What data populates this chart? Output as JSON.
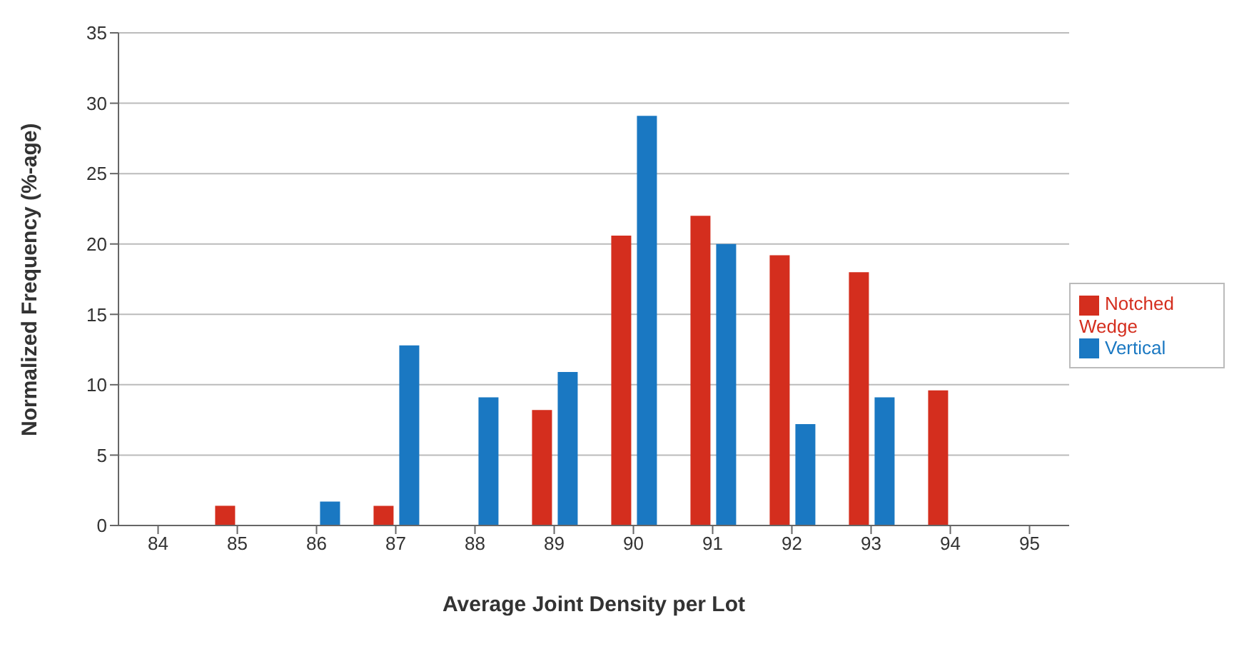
{
  "chart_data": {
    "type": "bar",
    "xlabel": "Average Joint Density per Lot",
    "ylabel": "Normalized Frequency (%-age)",
    "categories": [
      "84",
      "85",
      "86",
      "87",
      "88",
      "89",
      "90",
      "91",
      "92",
      "93",
      "94",
      "95"
    ],
    "series": [
      {
        "name": "Notched Wedge",
        "color": "#d42e1e",
        "values": [
          0,
          1.4,
          0,
          1.4,
          0,
          8.2,
          20.6,
          22,
          19.2,
          18,
          9.6,
          0
        ]
      },
      {
        "name": "Vertical",
        "color": "#1a78c2",
        "values": [
          0,
          0,
          1.7,
          12.8,
          9.1,
          10.9,
          29.1,
          20,
          7.2,
          9.1,
          0,
          0
        ]
      }
    ],
    "ylim": [
      0,
      35
    ],
    "yticks": [
      0,
      5,
      10,
      15,
      20,
      25,
      30,
      35
    ],
    "grid": "y",
    "legend": "right"
  }
}
